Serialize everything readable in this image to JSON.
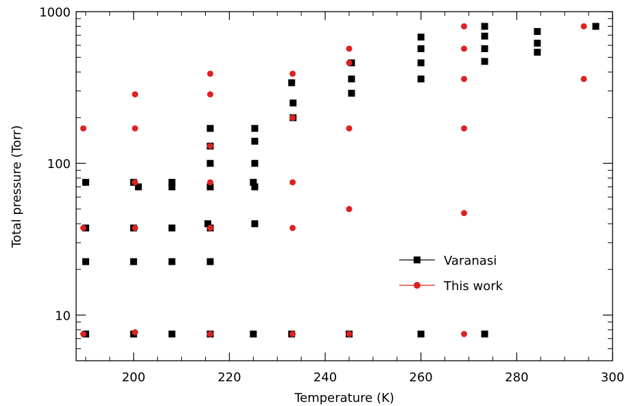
{
  "chart_data": {
    "type": "scatter",
    "xlabel": "Temperature (K)",
    "ylabel": "Total pressure (Torr)",
    "xlim": [
      188,
      300
    ],
    "ylim": [
      5,
      1000
    ],
    "yscale": "log",
    "x_ticks": [
      200,
      220,
      240,
      260,
      280,
      300
    ],
    "x_tick_labels": [
      "200",
      "220",
      "240",
      "260",
      "280",
      "300"
    ],
    "y_ticks": [
      10,
      100,
      1000
    ],
    "y_tick_labels": [
      "10",
      "100",
      "1000"
    ],
    "legend_position": "lower-right",
    "series": [
      {
        "name": "Varanasi",
        "marker": "square",
        "color": "#000000",
        "points": [
          [
            190,
            7.5
          ],
          [
            190,
            22.5
          ],
          [
            190,
            37.5
          ],
          [
            190,
            75
          ],
          [
            200,
            7.5
          ],
          [
            200,
            22.5
          ],
          [
            200,
            37.5
          ],
          [
            200,
            75
          ],
          [
            201,
            70
          ],
          [
            208,
            7.5
          ],
          [
            208,
            22.5
          ],
          [
            208,
            37.5
          ],
          [
            208,
            70
          ],
          [
            208,
            75
          ],
          [
            215.5,
            40
          ],
          [
            216,
            7.5
          ],
          [
            216,
            22.5
          ],
          [
            216,
            37.5
          ],
          [
            216,
            70
          ],
          [
            216,
            100
          ],
          [
            216,
            130
          ],
          [
            216,
            170
          ],
          [
            225,
            7.5
          ],
          [
            225,
            75
          ],
          [
            225.3,
            40
          ],
          [
            225.3,
            70
          ],
          [
            225.3,
            100
          ],
          [
            225.3,
            140
          ],
          [
            225.3,
            170
          ],
          [
            233,
            7.5
          ],
          [
            233,
            340
          ],
          [
            233.3,
            200
          ],
          [
            233.3,
            250
          ],
          [
            245,
            7.5
          ],
          [
            245.5,
            290
          ],
          [
            245.5,
            360
          ],
          [
            245.5,
            460
          ],
          [
            260,
            7.5
          ],
          [
            260,
            360
          ],
          [
            260,
            460
          ],
          [
            260,
            570
          ],
          [
            260,
            680
          ],
          [
            273.3,
            7.5
          ],
          [
            273.3,
            470
          ],
          [
            273.3,
            570
          ],
          [
            273.3,
            690
          ],
          [
            273.3,
            800
          ],
          [
            284.3,
            540
          ],
          [
            284.3,
            620
          ],
          [
            284.3,
            740
          ],
          [
            296.5,
            800
          ]
        ]
      },
      {
        "name": "This work",
        "marker": "circle",
        "color": "#dd2222",
        "points": [
          [
            189.5,
            7.5
          ],
          [
            189.5,
            37.5
          ],
          [
            189.5,
            170
          ],
          [
            200.3,
            7.7
          ],
          [
            200.3,
            37.5
          ],
          [
            200.3,
            75
          ],
          [
            200.3,
            170
          ],
          [
            200.3,
            285
          ],
          [
            216,
            7.5
          ],
          [
            216,
            37.5
          ],
          [
            216,
            75
          ],
          [
            216,
            130
          ],
          [
            216,
            285
          ],
          [
            216,
            390
          ],
          [
            233.2,
            7.5
          ],
          [
            233.2,
            37.5
          ],
          [
            233.2,
            75
          ],
          [
            233.2,
            200
          ],
          [
            233.2,
            390
          ],
          [
            245,
            7.5
          ],
          [
            245,
            50
          ],
          [
            245,
            170
          ],
          [
            245,
            460
          ],
          [
            245,
            570
          ],
          [
            269,
            7.5
          ],
          [
            269,
            47
          ],
          [
            269,
            170
          ],
          [
            269,
            360
          ],
          [
            269,
            570
          ],
          [
            269,
            800
          ],
          [
            294,
            360
          ],
          [
            294,
            800
          ]
        ]
      }
    ]
  }
}
